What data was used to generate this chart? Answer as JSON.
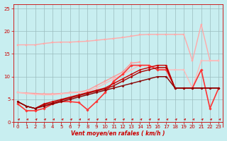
{
  "xlabel": "Vent moyen/en rafales ( km/h )",
  "background_color": "#c8eef0",
  "grid_color": "#9bbcbe",
  "x_values": [
    0,
    1,
    2,
    3,
    4,
    5,
    6,
    7,
    8,
    9,
    10,
    11,
    12,
    13,
    14,
    15,
    16,
    17,
    18,
    19,
    20,
    21,
    22,
    23
  ],
  "ylim": [
    -1,
    26
  ],
  "xlim": [
    -0.5,
    23.5
  ],
  "yticks": [
    0,
    5,
    10,
    15,
    20,
    25
  ],
  "series": [
    {
      "color": "#ffaaaa",
      "lw": 1.0,
      "marker": "s",
      "ms": 1.5,
      "y": [
        17.0,
        17.0,
        17.0,
        17.3,
        17.5,
        17.6,
        17.6,
        17.7,
        17.8,
        18.0,
        18.2,
        18.4,
        18.6,
        18.9,
        19.2,
        19.3,
        19.3,
        19.3,
        19.3,
        19.3,
        13.5,
        21.5,
        13.5,
        13.5
      ]
    },
    {
      "color": "#ff9999",
      "lw": 1.0,
      "marker": "s",
      "ms": 1.5,
      "y": [
        6.5,
        6.4,
        6.3,
        6.2,
        6.2,
        6.3,
        6.5,
        6.6,
        7.0,
        8.0,
        9.0,
        10.0,
        11.0,
        13.0,
        13.2,
        null,
        null,
        null,
        null,
        null,
        null,
        null,
        null,
        null
      ]
    },
    {
      "color": "#ffbbbb",
      "lw": 1.0,
      "marker": "s",
      "ms": 1.5,
      "y": [
        6.5,
        6.3,
        6.1,
        6.0,
        6.0,
        6.2,
        6.4,
        6.5,
        6.8,
        7.5,
        8.5,
        9.5,
        10.5,
        11.5,
        12.5,
        12.5,
        12.0,
        11.5,
        11.5,
        11.5,
        7.5,
        13.5,
        13.5,
        13.5
      ]
    },
    {
      "color": "#ff3333",
      "lw": 1.2,
      "marker": "D",
      "ms": 1.8,
      "y": [
        4.0,
        2.5,
        2.5,
        3.0,
        4.0,
        4.5,
        4.5,
        4.3,
        2.7,
        4.5,
        6.5,
        9.0,
        10.5,
        12.5,
        12.5,
        12.5,
        11.5,
        11.5,
        7.5,
        7.5,
        7.5,
        11.5,
        3.0,
        7.5
      ]
    },
    {
      "color": "#cc0000",
      "lw": 1.0,
      "marker": "D",
      "ms": 1.5,
      "y": [
        4.5,
        3.5,
        3.0,
        4.0,
        4.5,
        5.0,
        5.5,
        6.0,
        6.5,
        7.0,
        7.5,
        8.5,
        9.5,
        10.5,
        11.5,
        12.0,
        12.5,
        12.5,
        7.5,
        7.5,
        7.5,
        7.5,
        7.5,
        7.5
      ]
    },
    {
      "color": "#aa0000",
      "lw": 1.0,
      "marker": "D",
      "ms": 1.5,
      "y": [
        4.5,
        3.5,
        3.0,
        3.8,
        4.2,
        4.8,
        5.3,
        5.8,
        6.3,
        6.8,
        7.3,
        8.0,
        9.0,
        10.0,
        11.0,
        11.5,
        12.0,
        12.0,
        7.5,
        7.5,
        7.5,
        7.5,
        7.5,
        7.5
      ]
    },
    {
      "color": "#880000",
      "lw": 1.0,
      "marker": "D",
      "ms": 1.5,
      "y": [
        4.5,
        3.5,
        3.0,
        3.5,
        4.0,
        4.5,
        5.0,
        5.5,
        6.0,
        6.5,
        7.0,
        7.5,
        8.0,
        8.5,
        9.0,
        9.5,
        10.0,
        10.0,
        7.5,
        7.5,
        7.5,
        7.5,
        7.5,
        7.5
      ]
    }
  ],
  "xtick_labels": [
    "0",
    "1",
    "2",
    "3",
    "4",
    "5",
    "6",
    "7",
    "8",
    "9",
    "10",
    "11",
    "12",
    "13",
    "14",
    "15",
    "16",
    "17",
    "18",
    "19",
    "20",
    "21",
    "22",
    "23"
  ]
}
